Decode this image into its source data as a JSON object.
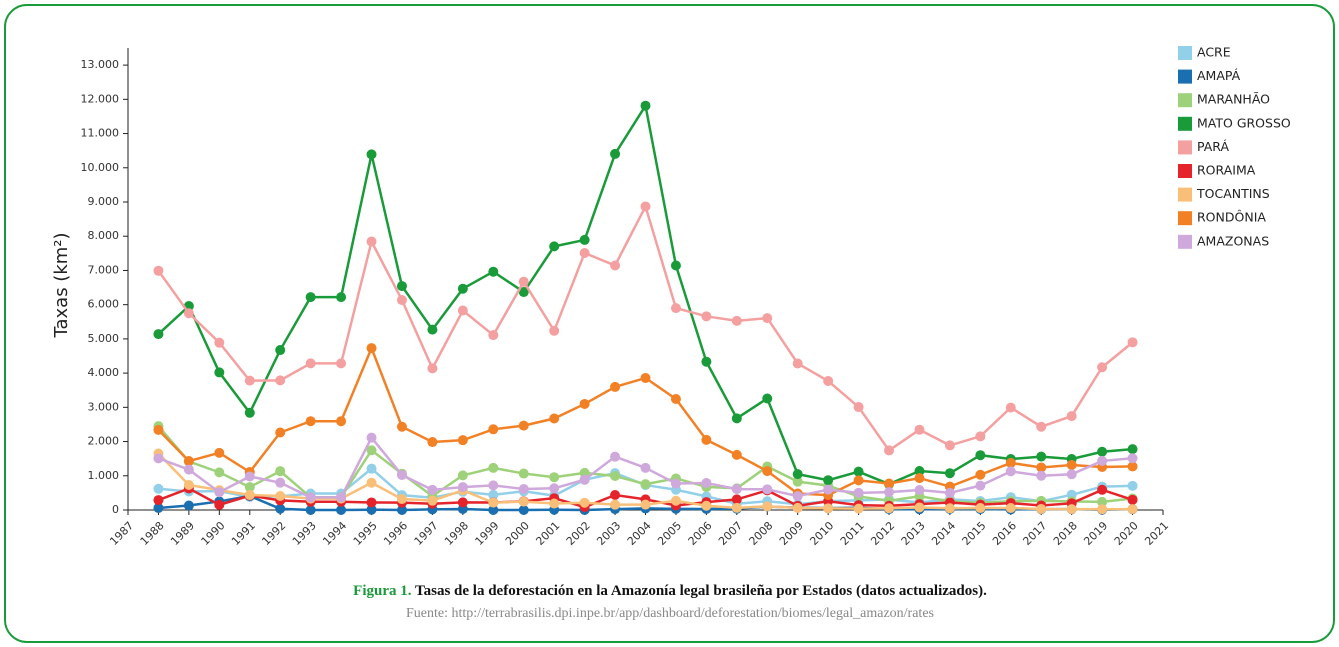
{
  "chart_data": {
    "type": "line",
    "y_label": "Taxas (km²)",
    "caption_label": "Figura 1.",
    "caption_text": "Tasas de la deforestación en la Amazonía legal brasileña por Estados (datos actualizados).",
    "source": "Fuente: http://terrabrasilis.dpi.inpe.br/app/dashboard/deforestation/biomes/legal_amazon/rates",
    "x": [
      1988,
      1989,
      1990,
      1991,
      1992,
      1993,
      1994,
      1995,
      1996,
      1997,
      1998,
      1999,
      2000,
      2001,
      2002,
      2003,
      2004,
      2005,
      2006,
      2007,
      2008,
      2009,
      2010,
      2011,
      2012,
      2013,
      2014,
      2015,
      2016,
      2017,
      2018,
      2019,
      2020
    ],
    "xlim": [
      1987,
      2021
    ],
    "xticks": [
      1987,
      1988,
      1989,
      1990,
      1991,
      1992,
      1993,
      1994,
      1995,
      1996,
      1997,
      1998,
      1999,
      2000,
      2001,
      2002,
      2003,
      2004,
      2005,
      2006,
      2007,
      2008,
      2009,
      2010,
      2011,
      2012,
      2013,
      2014,
      2015,
      2016,
      2017,
      2018,
      2019,
      2020,
      2021
    ],
    "ylim": [
      0,
      13500
    ],
    "yticks": [
      0,
      {
        "value": 1000,
        "label": "1.000"
      },
      {
        "value": 2000,
        "label": "2.000"
      },
      {
        "value": 3000,
        "label": "3.000"
      },
      {
        "value": 4000,
        "label": "4.000"
      },
      {
        "value": 5000,
        "label": "5.000"
      },
      {
        "value": 6000,
        "label": "6.000"
      },
      {
        "value": 7000,
        "label": "7.000"
      },
      {
        "value": 8000,
        "label": "8.000"
      },
      {
        "value": 9000,
        "label": "9.000"
      },
      {
        "value": 10000,
        "label": "10.000"
      },
      {
        "value": 11000,
        "label": "11.000"
      },
      {
        "value": 12000,
        "label": "12.000"
      },
      {
        "value": 13000,
        "label": "13.000"
      }
    ],
    "grid": false,
    "legend": "right",
    "series": [
      {
        "name": "ACRE",
        "color": "#92cfe8",
        "values": [
          620,
          540,
          550,
          380,
          400,
          482,
          482,
          1208,
          433,
          358,
          536,
          441,
          547,
          419,
          883,
          1078,
          728,
          592,
          398,
          184,
          254,
          167,
          259,
          280,
          305,
          221,
          309,
          264,
          372,
          257,
          444,
          682,
          706
        ]
      },
      {
        "name": "AMAPÁ",
        "color": "#1a6fb0",
        "values": [
          60,
          130,
          250,
          410,
          36,
          0,
          0,
          9,
          0,
          18,
          30,
          0,
          0,
          7,
          0,
          25,
          46,
          33,
          30,
          39,
          100,
          70,
          53,
          66,
          27,
          23,
          31,
          25,
          17,
          24,
          24,
          8,
          24
        ]
      },
      {
        "name": "MARANHÃO",
        "color": "#9ed27a",
        "values": [
          2450,
          1420,
          1100,
          670,
          1135,
          372,
          372,
          1745,
          1061,
          409,
          1012,
          1230,
          1065,
          958,
          1085,
          993,
          755,
          922,
          674,
          631,
          1271,
          828,
          712,
          396,
          269,
          403,
          257,
          209,
          258,
          265,
          253,
          237,
          336
        ]
      },
      {
        "name": "MATO GROSSO",
        "color": "#1a9b3a",
        "values": [
          5140,
          5960,
          4020,
          2840,
          4674,
          6220,
          6220,
          10391,
          6543,
          5271,
          6466,
          6963,
          6369,
          7703,
          7892,
          10405,
          11814,
          7145,
          4333,
          2678,
          3258,
          1049,
          871,
          1120,
          757,
          1139,
          1075,
          1601,
          1489,
          1561,
          1490,
          1702,
          1779
        ]
      },
      {
        "name": "PARÁ",
        "color": "#f4a0a0",
        "values": [
          6990,
          5750,
          4890,
          3780,
          3787,
          4284,
          4284,
          7845,
          6135,
          4139,
          5829,
          5111,
          6671,
          5237,
          7510,
          7145,
          8870,
          5899,
          5659,
          5526,
          5607,
          4281,
          3770,
          3008,
          1741,
          2346,
          1887,
          2153,
          2992,
          2433,
          2744,
          4172,
          4899
        ]
      },
      {
        "name": "RORAIMA",
        "color": "#e5232a",
        "values": [
          290,
          630,
          150,
          420,
          281,
          240,
          240,
          220,
          214,
          184,
          223,
          220,
          253,
          345,
          84,
          439,
          311,
          133,
          231,
          309,
          574,
          121,
          256,
          141,
          124,
          170,
          219,
          156,
          202,
          132,
          195,
          590,
          297
        ]
      },
      {
        "name": "TOCANTINS",
        "color": "#f9bf78",
        "values": [
          1650,
          730,
          580,
          440,
          409,
          333,
          333,
          797,
          320,
          273,
          576,
          216,
          244,
          189,
          212,
          156,
          158,
          271,
          124,
          63,
          107,
          61,
          49,
          40,
          52,
          74,
          50,
          57,
          58,
          31,
          25,
          23,
          25
        ]
      },
      {
        "name": "RONDÔNIA",
        "color": "#f28126",
        "values": [
          2340,
          1430,
          1670,
          1110,
          2265,
          2595,
          2595,
          4730,
          2432,
          1986,
          2041,
          2358,
          2465,
          2673,
          3099,
          3597,
          3858,
          3244,
          2049,
          1611,
          1136,
          482,
          435,
          865,
          773,
          932,
          684,
          1030,
          1376,
          1243,
          1316,
          1257,
          1273
        ]
      },
      {
        "name": "AMAZONAS",
        "color": "#cfa8dc",
        "values": [
          1510,
          1180,
          520,
          980,
          799,
          370,
          370,
          2114,
          1023,
          589,
          670,
          720,
          612,
          634,
          885,
          1558,
          1232,
          775,
          788,
          610,
          604,
          405,
          595,
          502,
          523,
          583,
          500,
          712,
          1129,
          1001,
          1045,
          1434,
          1512
        ]
      }
    ]
  }
}
